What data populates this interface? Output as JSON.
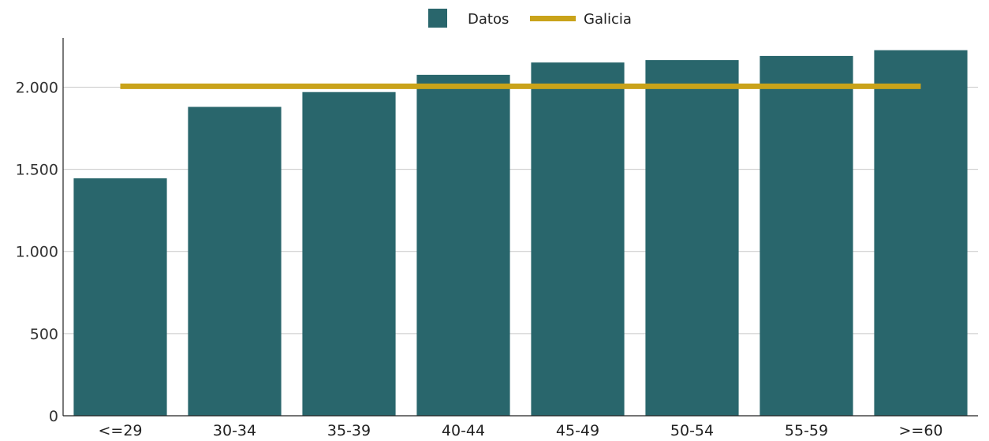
{
  "chart_data": {
    "type": "bar",
    "categories": [
      "<=29",
      "30-34",
      "35-39",
      "40-44",
      "45-49",
      "50-54",
      "55-59",
      ">=60"
    ],
    "series": [
      {
        "name": "Datos",
        "type": "bar",
        "color": "#29666c",
        "values": [
          1445,
          1880,
          1970,
          2075,
          2150,
          2165,
          2190,
          2225
        ]
      },
      {
        "name": "Galicia",
        "type": "line",
        "color": "#c9a31a",
        "values": [
          2005,
          2005,
          2005,
          2005,
          2005,
          2005,
          2005,
          2005
        ]
      }
    ],
    "yticks": [
      0,
      500,
      1000,
      1500,
      2000
    ],
    "ytick_labels": [
      "0",
      "500",
      "1.000",
      "1.500",
      "2.000"
    ],
    "ylim": [
      0,
      2300
    ],
    "grid": true,
    "legend": "top-center"
  }
}
